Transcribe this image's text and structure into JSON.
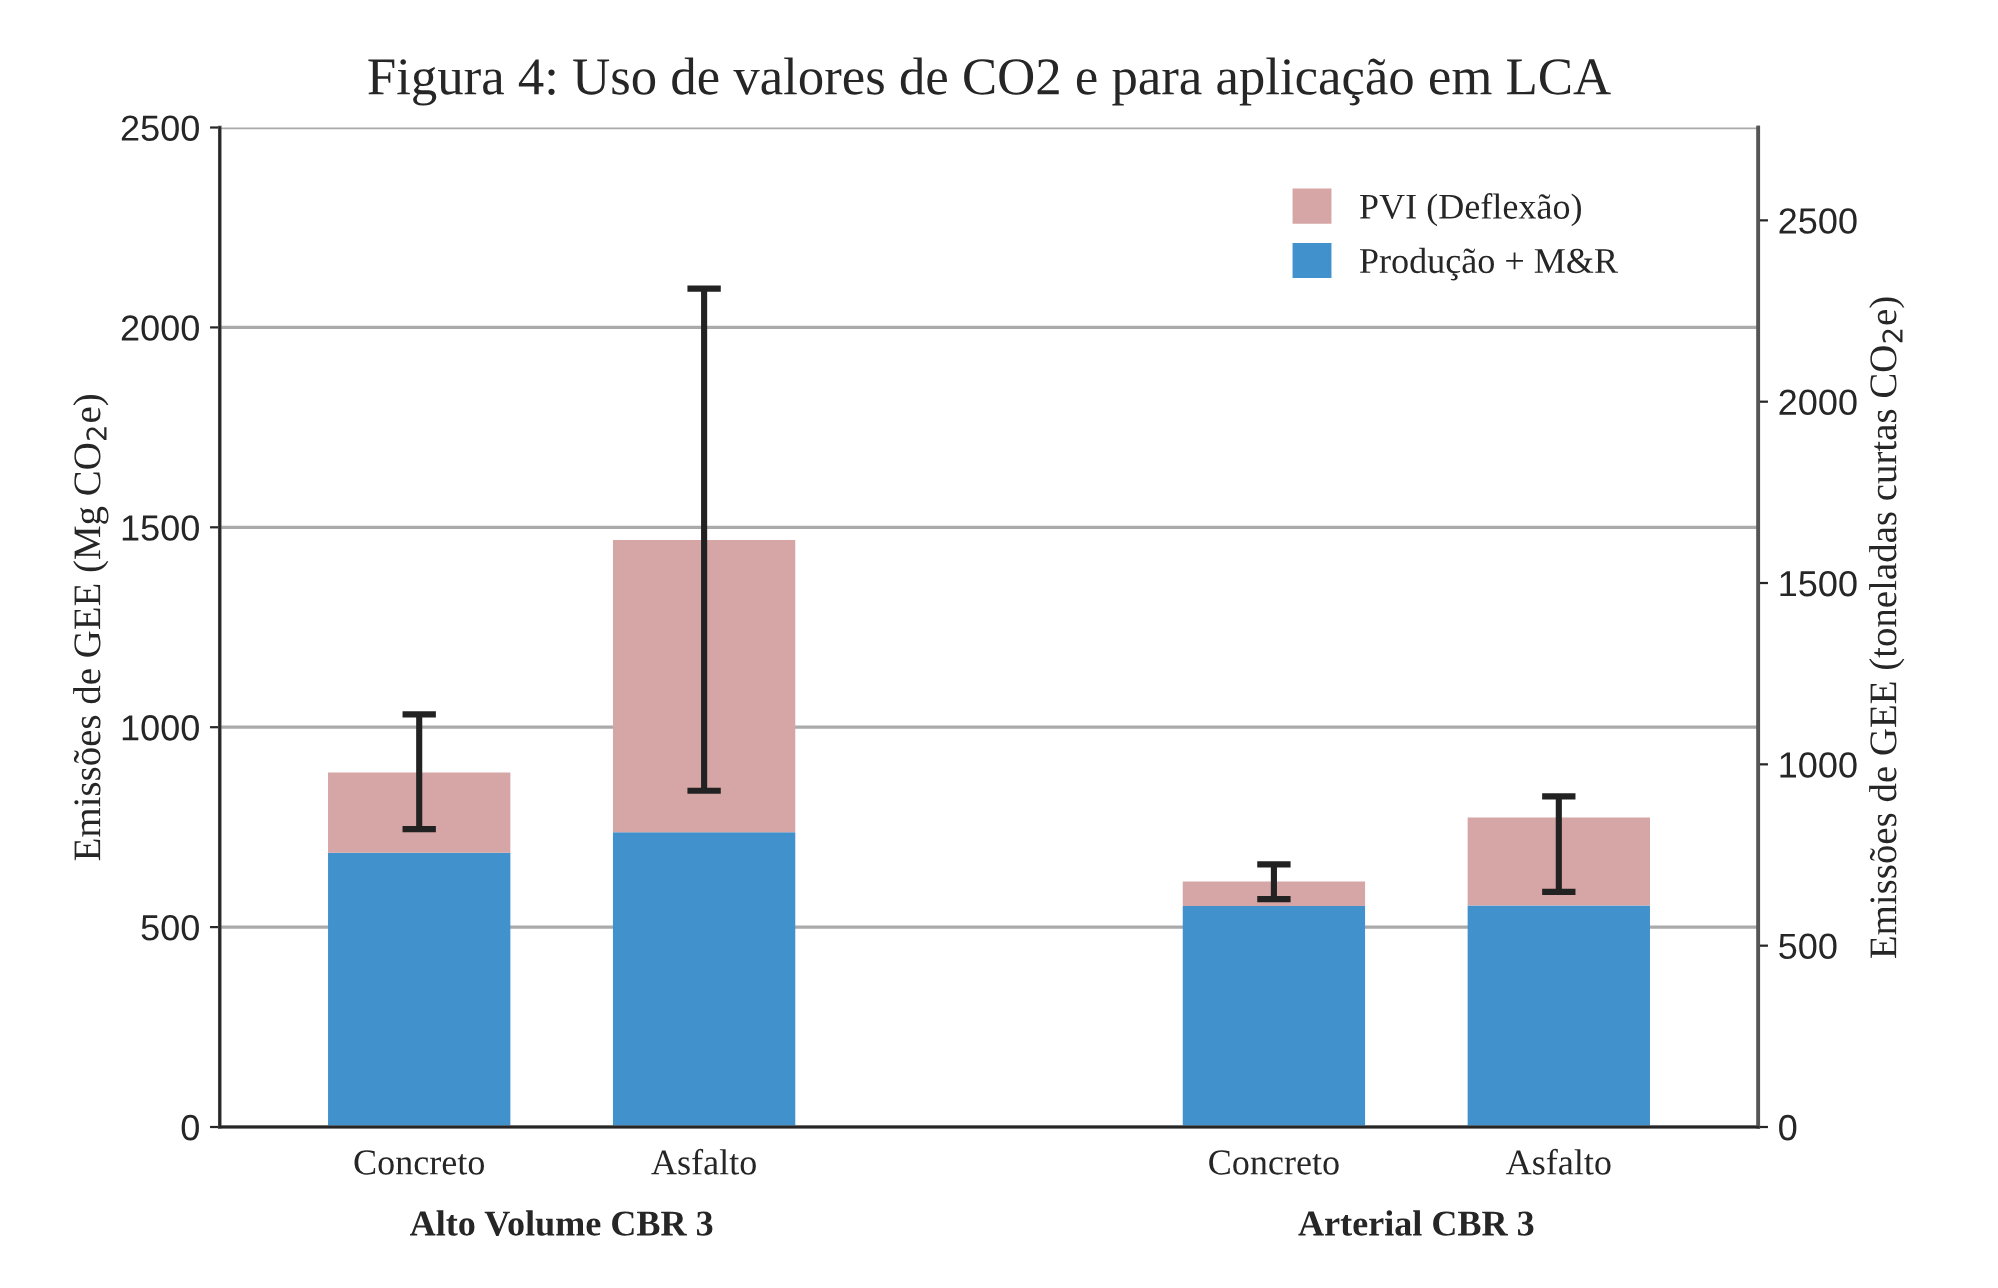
{
  "chart_data": {
    "type": "bar",
    "title": "Figura 4: Uso de valores de CO2 e para aplicação em LCA",
    "ylabel": "Emissões de GEE (Mg CO$_{2}$e)",
    "y2label": "Emissões de GEE (toneladas curtas CO$_{2}$e)",
    "categories": [
      "Concreto",
      "Asfalto",
      null,
      "Concreto",
      "Asfalto"
    ],
    "stacked": true,
    "series": [
      {
        "name": "Produção + M&R",
        "color": "#4191cd",
        "values": [
          686,
          737,
          null,
          553,
          554
        ]
      },
      {
        "name": "PVI (Deflexão)",
        "color": "#d6a5a5",
        "values": [
          201,
          731,
          null,
          61,
          220
        ],
        "errors": [
          [
            745,
            1032
          ],
          [
            841,
            2097
          ],
          null,
          [
            570,
            657
          ],
          [
            588,
            827
          ]
        ]
      }
    ],
    "annotations": [
      "Alto Volume CBR 3",
      "Arterial CBR 3"
    ],
    "ylim": [
      0,
      2500
    ],
    "yticks": [
      0,
      500,
      1000,
      1500,
      2000,
      2500
    ],
    "y2lim": [
      0,
      2756
    ],
    "y2ticks": [
      0,
      500,
      1000,
      1500,
      2000,
      2500
    ],
    "grid": "y",
    "legend": "top right"
  }
}
